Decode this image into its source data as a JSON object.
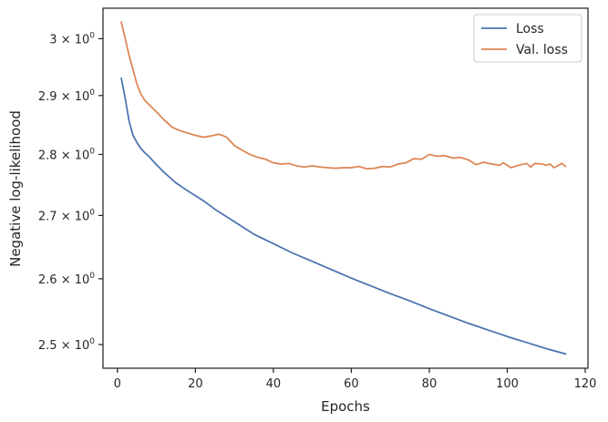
{
  "chart_data": {
    "type": "line",
    "xlabel": "Epochs",
    "ylabel": "Negative log-likelihood",
    "yscale": "log",
    "xlim": [
      -3.7,
      120.7
    ],
    "ylim": [
      2.465,
      3.055
    ],
    "grid": false,
    "legend_position": "top-right",
    "x_ticks": [
      0,
      20,
      40,
      60,
      80,
      100,
      120
    ],
    "y_ticks": [
      {
        "value": 2.5,
        "mantissa": "2.5",
        "exponent": "0"
      },
      {
        "value": 2.6,
        "mantissa": "2.6",
        "exponent": "0"
      },
      {
        "value": 2.7,
        "mantissa": "2.7",
        "exponent": "0"
      },
      {
        "value": 2.8,
        "mantissa": "2.8",
        "exponent": "0"
      },
      {
        "value": 2.9,
        "mantissa": "2.9",
        "exponent": "0"
      },
      {
        "value": 3.0,
        "mantissa": "3",
        "exponent": "0"
      }
    ],
    "series": [
      {
        "name": "Loss",
        "color": "#4c72b0",
        "points": [
          [
            1,
            2.93
          ],
          [
            2,
            2.895
          ],
          [
            3,
            2.856
          ],
          [
            4,
            2.832
          ],
          [
            5,
            2.82
          ],
          [
            6,
            2.81
          ],
          [
            7,
            2.803
          ],
          [
            8,
            2.797
          ],
          [
            10,
            2.783
          ],
          [
            12,
            2.77
          ],
          [
            15,
            2.753
          ],
          [
            18,
            2.74
          ],
          [
            22,
            2.724
          ],
          [
            25,
            2.71
          ],
          [
            30,
            2.69
          ],
          [
            35,
            2.67
          ],
          [
            40,
            2.655
          ],
          [
            45,
            2.64
          ],
          [
            50,
            2.627
          ],
          [
            55,
            2.614
          ],
          [
            60,
            2.601
          ],
          [
            65,
            2.589
          ],
          [
            70,
            2.577
          ],
          [
            75,
            2.566
          ],
          [
            80,
            2.554
          ],
          [
            85,
            2.543
          ],
          [
            90,
            2.532
          ],
          [
            95,
            2.522
          ],
          [
            100,
            2.512
          ],
          [
            105,
            2.503
          ],
          [
            110,
            2.494
          ],
          [
            115,
            2.486
          ]
        ]
      },
      {
        "name": "Val. loss",
        "color": "#dd8452",
        "points": [
          [
            1,
            3.03
          ],
          [
            2,
            3.0
          ],
          [
            3,
            2.97
          ],
          [
            4,
            2.945
          ],
          [
            5,
            2.92
          ],
          [
            6,
            2.903
          ],
          [
            7,
            2.892
          ],
          [
            8,
            2.885
          ],
          [
            10,
            2.872
          ],
          [
            12,
            2.858
          ],
          [
            14,
            2.846
          ],
          [
            16,
            2.84
          ],
          [
            18,
            2.836
          ],
          [
            20,
            2.832
          ],
          [
            22,
            2.829
          ],
          [
            24,
            2.831
          ],
          [
            26,
            2.834
          ],
          [
            28,
            2.829
          ],
          [
            30,
            2.815
          ],
          [
            32,
            2.807
          ],
          [
            34,
            2.8
          ],
          [
            36,
            2.795
          ],
          [
            38,
            2.792
          ],
          [
            40,
            2.786
          ],
          [
            42,
            2.784
          ],
          [
            44,
            2.785
          ],
          [
            46,
            2.781
          ],
          [
            48,
            2.779
          ],
          [
            50,
            2.781
          ],
          [
            52,
            2.779
          ],
          [
            54,
            2.778
          ],
          [
            56,
            2.777
          ],
          [
            58,
            2.778
          ],
          [
            60,
            2.778
          ],
          [
            62,
            2.78
          ],
          [
            64,
            2.776
          ],
          [
            66,
            2.777
          ],
          [
            68,
            2.78
          ],
          [
            70,
            2.779
          ],
          [
            72,
            2.784
          ],
          [
            74,
            2.786
          ],
          [
            76,
            2.793
          ],
          [
            78,
            2.792
          ],
          [
            80,
            2.8
          ],
          [
            82,
            2.797
          ],
          [
            84,
            2.798
          ],
          [
            86,
            2.794
          ],
          [
            88,
            2.795
          ],
          [
            90,
            2.791
          ],
          [
            92,
            2.783
          ],
          [
            94,
            2.787
          ],
          [
            96,
            2.784
          ],
          [
            98,
            2.782
          ],
          [
            99,
            2.786
          ],
          [
            101,
            2.778
          ],
          [
            103,
            2.782
          ],
          [
            105,
            2.785
          ],
          [
            106,
            2.779
          ],
          [
            107,
            2.785
          ],
          [
            109,
            2.784
          ],
          [
            110,
            2.782
          ],
          [
            111,
            2.784
          ],
          [
            112,
            2.778
          ],
          [
            114,
            2.785
          ],
          [
            115,
            2.78
          ]
        ]
      }
    ]
  }
}
